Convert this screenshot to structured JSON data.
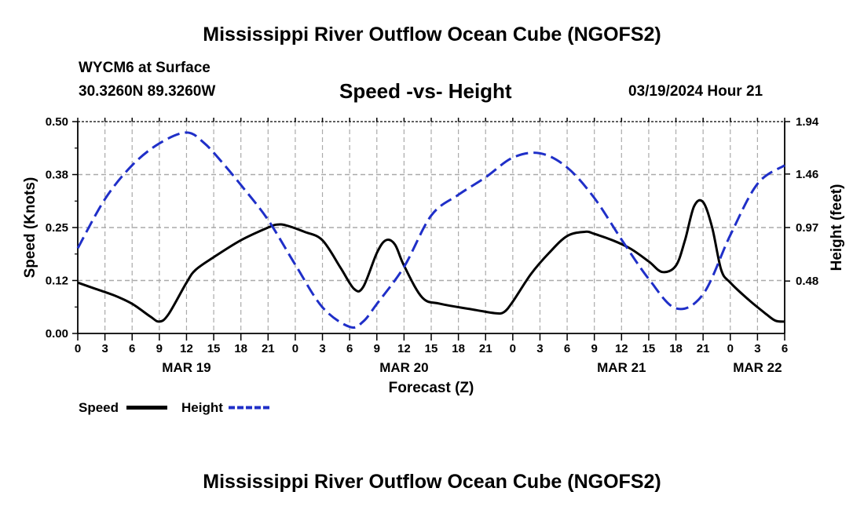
{
  "page": {
    "title": "Mississippi River Outflow Ocean Cube (NGOFS2)",
    "title_bottom": "Mississippi River Outflow Ocean Cube (NGOFS2)",
    "station": "WYCM6 at Surface",
    "coords": "30.3260N  89.3260W",
    "datetime": "03/19/2024 Hour 21"
  },
  "legend": {
    "speed_label": "Speed",
    "height_label": "Height"
  },
  "colors": {
    "speed": "#000000",
    "height": "#1f2fc8",
    "grid": "#aaaaaa"
  },
  "chart_data": {
    "type": "line",
    "title": "Speed -vs- Height",
    "xlabel": "Forecast (Z)",
    "ylabel": "Speed (Knots)",
    "ylabel_right": "Height (feet)",
    "x_unit": "hours since 2024-03-19 00Z",
    "xlim": [
      0,
      78
    ],
    "ylim": [
      0,
      0.5
    ],
    "ylim_right": [
      0,
      1.94
    ],
    "yticks": [
      {
        "value": 0.0,
        "label": "0.00"
      },
      {
        "value": 0.125,
        "label": "0.12"
      },
      {
        "value": 0.25,
        "label": "0.25"
      },
      {
        "value": 0.375,
        "label": "0.38"
      },
      {
        "value": 0.5,
        "label": "0.50"
      }
    ],
    "yticks_right": [
      {
        "value": 0.48,
        "label": "0.48"
      },
      {
        "value": 0.97,
        "label": "0.97"
      },
      {
        "value": 1.46,
        "label": "1.46"
      },
      {
        "value": 1.94,
        "label": "1.94"
      }
    ],
    "xticks": [
      {
        "value": 0,
        "label": "0"
      },
      {
        "value": 3,
        "label": "3"
      },
      {
        "value": 6,
        "label": "6"
      },
      {
        "value": 9,
        "label": "9"
      },
      {
        "value": 12,
        "label": "12"
      },
      {
        "value": 15,
        "label": "15"
      },
      {
        "value": 18,
        "label": "18"
      },
      {
        "value": 21,
        "label": "21"
      },
      {
        "value": 24,
        "label": "0"
      },
      {
        "value": 27,
        "label": "3"
      },
      {
        "value": 30,
        "label": "6"
      },
      {
        "value": 33,
        "label": "9"
      },
      {
        "value": 36,
        "label": "12"
      },
      {
        "value": 39,
        "label": "15"
      },
      {
        "value": 42,
        "label": "18"
      },
      {
        "value": 45,
        "label": "21"
      },
      {
        "value": 48,
        "label": "0"
      },
      {
        "value": 51,
        "label": "3"
      },
      {
        "value": 54,
        "label": "6"
      },
      {
        "value": 57,
        "label": "9"
      },
      {
        "value": 60,
        "label": "12"
      },
      {
        "value": 63,
        "label": "15"
      },
      {
        "value": 66,
        "label": "18"
      },
      {
        "value": 69,
        "label": "21"
      },
      {
        "value": 72,
        "label": "0"
      },
      {
        "value": 75,
        "label": "3"
      },
      {
        "value": 78,
        "label": "6"
      }
    ],
    "date_labels": [
      {
        "value": 12,
        "label": "MAR 19"
      },
      {
        "value": 36,
        "label": "MAR 20"
      },
      {
        "value": 60,
        "label": "MAR 21"
      },
      {
        "value": 75,
        "label": "MAR 22"
      }
    ],
    "grid": true,
    "series": [
      {
        "name": "Speed",
        "axis": "left",
        "style": "solid",
        "x": [
          0,
          2,
          4,
          6,
          8,
          9,
          10,
          12,
          13,
          15,
          18,
          21,
          22,
          23,
          25,
          27,
          29,
          30.5,
          31.5,
          33,
          34,
          35,
          36,
          38,
          40,
          44,
          46,
          47,
          48,
          50,
          52,
          54,
          56,
          57,
          59,
          61,
          63,
          64.5,
          66,
          67,
          68,
          69,
          70,
          71,
          72,
          74,
          76,
          77,
          78
        ],
        "values": [
          0.12,
          0.105,
          0.09,
          0.07,
          0.04,
          0.028,
          0.045,
          0.12,
          0.15,
          0.18,
          0.22,
          0.25,
          0.257,
          0.255,
          0.24,
          0.22,
          0.155,
          0.105,
          0.11,
          0.19,
          0.22,
          0.21,
          0.16,
          0.085,
          0.07,
          0.055,
          0.048,
          0.05,
          0.075,
          0.14,
          0.19,
          0.23,
          0.24,
          0.235,
          0.22,
          0.2,
          0.17,
          0.145,
          0.16,
          0.22,
          0.3,
          0.31,
          0.25,
          0.15,
          0.12,
          0.08,
          0.045,
          0.03,
          0.028
        ]
      },
      {
        "name": "Height",
        "axis": "right",
        "style": "dashed",
        "x": [
          0,
          3,
          6,
          9,
          12,
          14,
          16,
          18,
          21,
          24,
          27,
          30,
          31.5,
          33,
          36,
          39,
          42,
          45,
          48,
          51,
          54,
          57,
          60,
          63,
          66,
          69,
          72,
          75,
          78
        ],
        "values": [
          0.78,
          1.23,
          1.54,
          1.74,
          1.84,
          1.74,
          1.56,
          1.36,
          1.04,
          0.63,
          0.24,
          0.06,
          0.11,
          0.27,
          0.61,
          1.08,
          1.27,
          1.43,
          1.61,
          1.65,
          1.52,
          1.24,
          0.86,
          0.5,
          0.23,
          0.36,
          0.9,
          1.37,
          1.54
        ]
      }
    ]
  }
}
